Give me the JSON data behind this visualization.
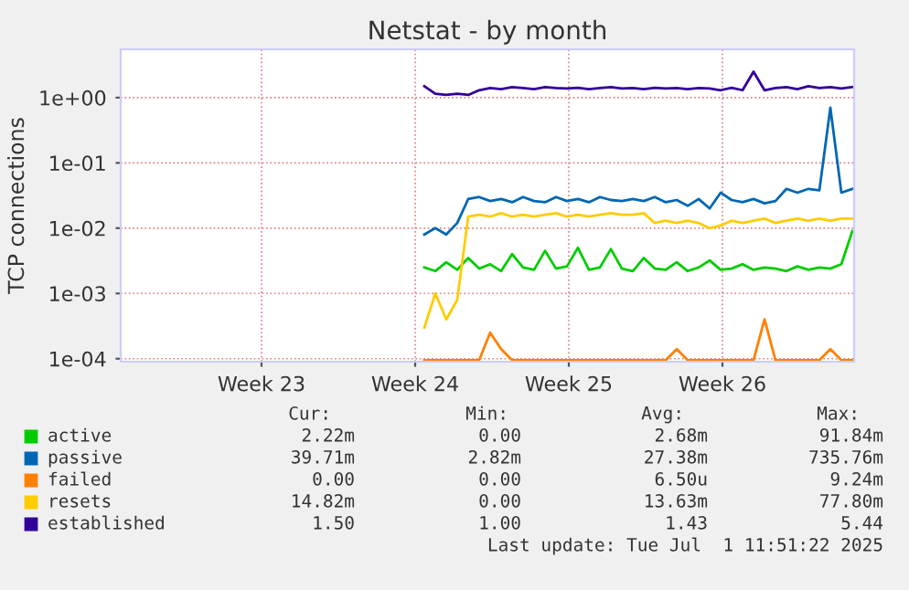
{
  "chart_data": {
    "type": "line",
    "title": "Netstat - by month",
    "ylabel": "TCP connections",
    "log": "y",
    "grid": true,
    "legend": "bottom",
    "marker": "none",
    "line_style": "solid",
    "ylim": [
      9e-05,
      5.5
    ],
    "yticks": [
      {
        "value": 0.0001,
        "label": "1e-04"
      },
      {
        "value": 0.001,
        "label": "1e-03"
      },
      {
        "value": 0.01,
        "label": "1e-02"
      },
      {
        "value": 0.1,
        "label": "1e-01"
      },
      {
        "value": 1,
        "label": "1e+00"
      }
    ],
    "xlim": [
      "2025-05-30T04:00",
      "2025-07-02T14:00"
    ],
    "xticks": [
      {
        "value": "2025-06-05T14:00",
        "label": "Week 23"
      },
      {
        "value": "2025-06-12T14:00",
        "label": "Week 24"
      },
      {
        "value": "2025-06-19T14:00",
        "label": "Week 25"
      },
      {
        "value": "2025-06-26T14:00",
        "label": "Week 26"
      }
    ],
    "x": [
      "2025-06-13T00:00",
      "2025-06-13T12:00",
      "2025-06-14T00:00",
      "2025-06-14T12:00",
      "2025-06-15T00:00",
      "2025-06-15T12:00",
      "2025-06-16T00:00",
      "2025-06-16T12:00",
      "2025-06-17T00:00",
      "2025-06-17T12:00",
      "2025-06-18T00:00",
      "2025-06-18T12:00",
      "2025-06-19T00:00",
      "2025-06-19T12:00",
      "2025-06-20T00:00",
      "2025-06-20T12:00",
      "2025-06-21T00:00",
      "2025-06-21T12:00",
      "2025-06-22T00:00",
      "2025-06-22T12:00",
      "2025-06-23T00:00",
      "2025-06-23T12:00",
      "2025-06-24T00:00",
      "2025-06-24T12:00",
      "2025-06-25T00:00",
      "2025-06-25T12:00",
      "2025-06-26T00:00",
      "2025-06-26T12:00",
      "2025-06-27T00:00",
      "2025-06-27T12:00",
      "2025-06-28T00:00",
      "2025-06-28T12:00",
      "2025-06-29T00:00",
      "2025-06-29T12:00",
      "2025-06-30T00:00",
      "2025-06-30T12:00",
      "2025-07-01T00:00",
      "2025-07-01T12:00",
      "2025-07-02T00:00",
      "2025-07-02T12:00"
    ],
    "series": [
      {
        "name": "active",
        "color": "#00cc00",
        "values": [
          0.0025,
          0.0022,
          0.003,
          0.0023,
          0.0035,
          0.0024,
          0.0028,
          0.0022,
          0.004,
          0.0025,
          0.0023,
          0.0045,
          0.0024,
          0.0026,
          0.005,
          0.0023,
          0.0025,
          0.0048,
          0.0024,
          0.0022,
          0.0035,
          0.0024,
          0.0023,
          0.003,
          0.0022,
          0.0025,
          0.0032,
          0.0023,
          0.0024,
          0.0028,
          0.0023,
          0.0025,
          0.0024,
          0.0022,
          0.0026,
          0.0023,
          0.0025,
          0.0024,
          0.0028,
          0.009
        ]
      },
      {
        "name": "passive",
        "color": "#0066b3",
        "values": [
          0.008,
          0.01,
          0.008,
          0.012,
          0.028,
          0.03,
          0.026,
          0.028,
          0.025,
          0.03,
          0.026,
          0.025,
          0.03,
          0.026,
          0.028,
          0.025,
          0.03,
          0.027,
          0.026,
          0.028,
          0.026,
          0.03,
          0.025,
          0.027,
          0.022,
          0.028,
          0.02,
          0.035,
          0.027,
          0.025,
          0.028,
          0.024,
          0.026,
          0.04,
          0.035,
          0.04,
          0.038,
          0.7,
          0.035,
          0.04
        ]
      },
      {
        "name": "failed",
        "color": "#ff8000",
        "values": [
          9.5e-05,
          9.5e-05,
          9.5e-05,
          9.5e-05,
          9.5e-05,
          9.5e-05,
          0.00025,
          0.00014,
          9.5e-05,
          9.5e-05,
          9.5e-05,
          9.5e-05,
          9.5e-05,
          9.5e-05,
          9.5e-05,
          9.5e-05,
          9.5e-05,
          9.5e-05,
          9.5e-05,
          9.5e-05,
          9.5e-05,
          9.5e-05,
          9.5e-05,
          0.00014,
          9.5e-05,
          9.5e-05,
          9.5e-05,
          9.5e-05,
          9.5e-05,
          9.5e-05,
          9.5e-05,
          0.0004,
          9.5e-05,
          9.5e-05,
          9.5e-05,
          9.5e-05,
          9.5e-05,
          0.00014,
          9.5e-05,
          9.5e-05
        ]
      },
      {
        "name": "resets",
        "color": "#ffcc00",
        "values": [
          0.0003,
          0.001,
          0.0004,
          0.0008,
          0.015,
          0.016,
          0.015,
          0.017,
          0.015,
          0.016,
          0.015,
          0.016,
          0.017,
          0.015,
          0.016,
          0.015,
          0.016,
          0.017,
          0.016,
          0.016,
          0.017,
          0.012,
          0.013,
          0.012,
          0.013,
          0.012,
          0.01,
          0.011,
          0.013,
          0.012,
          0.013,
          0.014,
          0.012,
          0.013,
          0.014,
          0.013,
          0.014,
          0.013,
          0.014,
          0.014
        ]
      },
      {
        "name": "established",
        "color": "#330099",
        "values": [
          1.5,
          1.15,
          1.1,
          1.15,
          1.1,
          1.3,
          1.4,
          1.35,
          1.45,
          1.4,
          1.35,
          1.45,
          1.4,
          1.38,
          1.42,
          1.35,
          1.4,
          1.45,
          1.38,
          1.4,
          1.35,
          1.42,
          1.38,
          1.4,
          1.35,
          1.4,
          1.38,
          1.3,
          1.42,
          1.3,
          2.5,
          1.3,
          1.4,
          1.45,
          1.35,
          1.5,
          1.4,
          1.45,
          1.38,
          1.45
        ]
      }
    ],
    "annotations": [
      "Cur:",
      "Min:",
      "Avg:",
      "Max:",
      "2.22m",
      "0.00",
      "2.68m",
      "91.84m",
      "39.71m",
      "2.82m",
      "27.38m",
      "735.76m",
      "0.00",
      "0.00",
      "6.50u",
      "9.24m",
      "14.82m",
      "0.00",
      "13.63m",
      "77.80m",
      "1.50",
      "1.00",
      "1.43",
      "5.44",
      "Last update: Tue Jul  1 11:51:22 2025"
    ]
  }
}
